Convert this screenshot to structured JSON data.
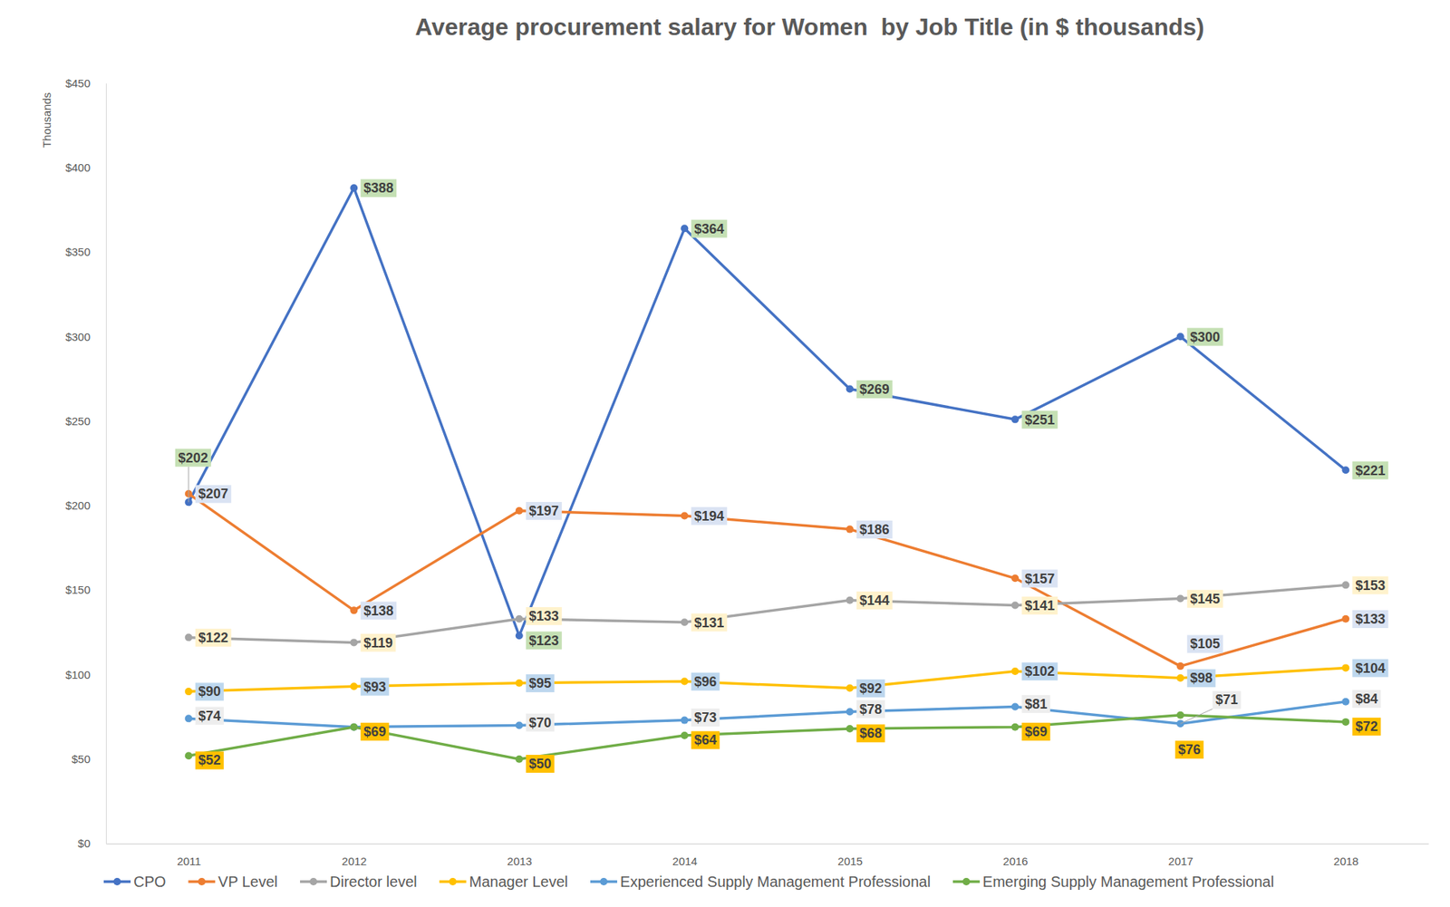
{
  "chart_data": {
    "type": "line",
    "title": "Average procurement salary for Women  by Job Title (in $ thousands)",
    "y_label": "Thousands",
    "categories": [
      "2011",
      "2012",
      "2013",
      "2014",
      "2015",
      "2016",
      "2017",
      "2018"
    ],
    "series": [
      {
        "name": "CPO",
        "color": "#4472c4",
        "marker": "circle",
        "line_style": "solid",
        "values": [
          202,
          388,
          123,
          364,
          269,
          251,
          300,
          221
        ],
        "value_labels": [
          "$202",
          "$388",
          "$123",
          "$364",
          "$269",
          "$251",
          "$300",
          "$221"
        ]
      },
      {
        "name": "VP Level",
        "color": "#ed7d31",
        "marker": "circle",
        "line_style": "solid",
        "values": [
          207,
          138,
          197,
          194,
          186,
          157,
          105,
          133
        ],
        "value_labels": [
          "$207",
          "$138",
          "$197",
          "$194",
          "$186",
          "$157",
          "$105",
          "$133"
        ]
      },
      {
        "name": "Director level",
        "color": "#a5a5a5",
        "marker": "circle",
        "line_style": "solid",
        "values": [
          122,
          119,
          133,
          131,
          144,
          141,
          145,
          153
        ],
        "value_labels": [
          "$122",
          "$119",
          "$133",
          "$131",
          "$144",
          "$141",
          "$145",
          "$153"
        ]
      },
      {
        "name": "Manager Level",
        "color": "#ffc000",
        "marker": "circle",
        "line_style": "solid",
        "values": [
          90,
          93,
          95,
          96,
          92,
          102,
          98,
          104
        ],
        "value_labels": [
          "$90",
          "$93",
          "$95",
          "$96",
          "$92",
          "$102",
          "$98",
          "$104"
        ]
      },
      {
        "name": "Experienced Supply Management Professional",
        "color": "#5b9bd5",
        "marker": "circle",
        "line_style": "solid",
        "values": [
          74,
          69,
          70,
          73,
          78,
          81,
          71,
          84
        ],
        "value_labels": [
          "$74",
          null,
          "$70",
          "$73",
          "$78",
          "$81",
          "$71",
          "$84"
        ]
      },
      {
        "name": "Emerging Supply Management Professional",
        "color": "#70ad47",
        "marker": "circle",
        "line_style": "solid",
        "values": [
          52,
          69,
          50,
          64,
          68,
          69,
          76,
          72
        ],
        "value_labels": [
          "$52",
          "$69",
          "$50",
          "$64",
          "$68",
          "$69",
          "$76",
          "$72"
        ]
      }
    ],
    "ylim": [
      0,
      450
    ],
    "yticks": [
      {
        "value": 0,
        "label": "$0"
      },
      {
        "value": 50,
        "label": "$50"
      },
      {
        "value": 100,
        "label": "$100"
      },
      {
        "value": 150,
        "label": "$150"
      },
      {
        "value": 200,
        "label": "$200"
      },
      {
        "value": 250,
        "label": "$250"
      },
      {
        "value": 300,
        "label": "$300"
      },
      {
        "value": 350,
        "label": "$350"
      },
      {
        "value": 400,
        "label": "$400"
      },
      {
        "value": 450,
        "label": "$450"
      }
    ],
    "grid": false,
    "legend": "bottom",
    "data_labels": true
  }
}
